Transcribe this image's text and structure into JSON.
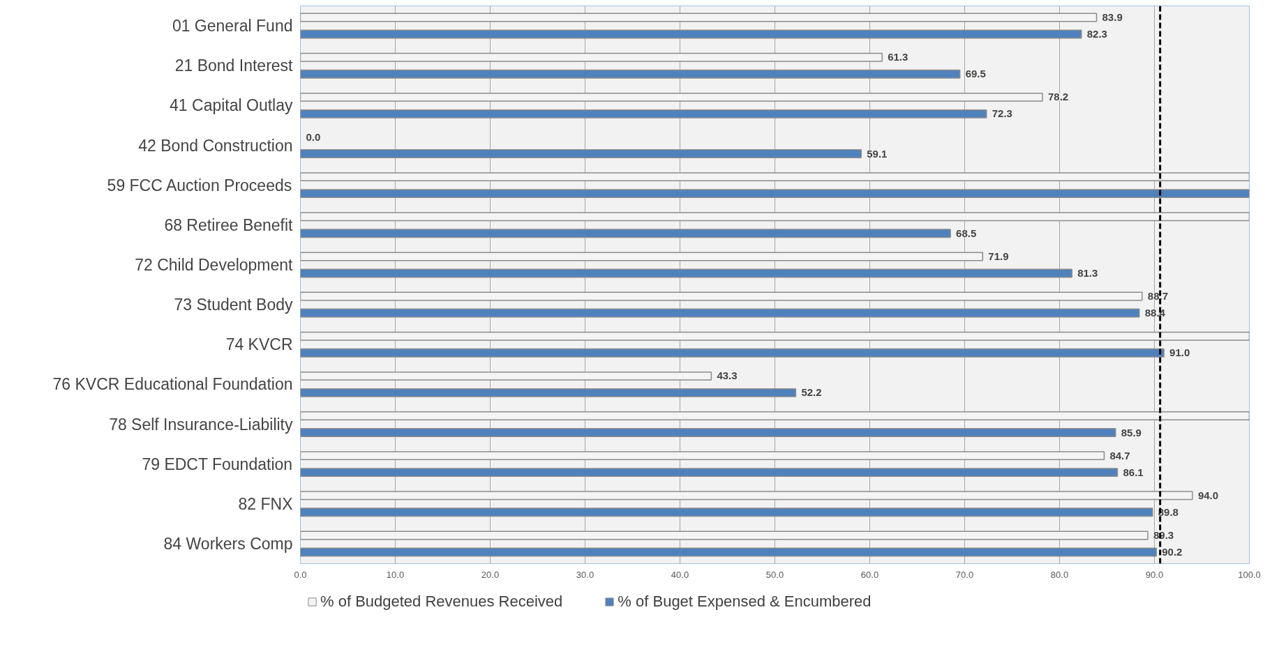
{
  "chart_data": {
    "type": "bar",
    "orientation": "horizontal",
    "categories": [
      "01 General Fund",
      "21 Bond Interest",
      "41 Capital Outlay",
      "42 Bond Construction",
      "59 FCC Auction Proceeds",
      "68 Retiree Benefit",
      "72 Child Development",
      "73 Student Body",
      "74 KVCR",
      "76 KVCR Educational Foundation",
      "78 Self Insurance-Liability",
      "79 EDCT Foundation",
      "82 FNX",
      "84 Workers Comp"
    ],
    "series": [
      {
        "name": "% of Budgeted Revenues Received",
        "color": "#f4f4f4",
        "values": [
          83.9,
          61.3,
          78.2,
          0.0,
          100,
          100,
          71.9,
          88.7,
          100,
          43.3,
          100,
          84.7,
          94.0,
          89.3
        ],
        "value_labels": [
          "83.9",
          "61.3",
          "78.2",
          "0.0",
          null,
          null,
          "71.9",
          "88.7",
          null,
          "43.3",
          null,
          "84.7",
          "94.0",
          "89.3"
        ]
      },
      {
        "name": "% of Buget Expensed & Encumbered",
        "color": "#4f81bd",
        "values": [
          82.3,
          69.5,
          72.3,
          59.1,
          100,
          68.5,
          81.3,
          88.4,
          91.0,
          52.2,
          85.9,
          86.1,
          89.8,
          90.2
        ],
        "value_labels": [
          "82.3",
          "69.5",
          "72.3",
          "59.1",
          null,
          "68.5",
          "81.3",
          "88.4",
          "91.0",
          "52.2",
          "85.9",
          "86.1",
          "89.8",
          "90.2"
        ]
      }
    ],
    "xlim": [
      0,
      100
    ],
    "xticks": [
      {
        "value": 0,
        "label": "0.0"
      },
      {
        "value": 10,
        "label": "10.0"
      },
      {
        "value": 20,
        "label": "20.0"
      },
      {
        "value": 30,
        "label": "30.0"
      },
      {
        "value": 40,
        "label": "40.0"
      },
      {
        "value": 50,
        "label": "50.0"
      },
      {
        "value": 60,
        "label": "60.0"
      },
      {
        "value": 70,
        "label": "70.0"
      },
      {
        "value": 80,
        "label": "80.0"
      },
      {
        "value": 90,
        "label": "90.0"
      },
      {
        "value": 100,
        "label": "100.0"
      }
    ],
    "ref_lines": [
      {
        "axis": "x",
        "value": 90.6,
        "label": null,
        "color": "#000000",
        "line_style": "dashed"
      }
    ],
    "grid": "x",
    "legend": "bottom"
  }
}
